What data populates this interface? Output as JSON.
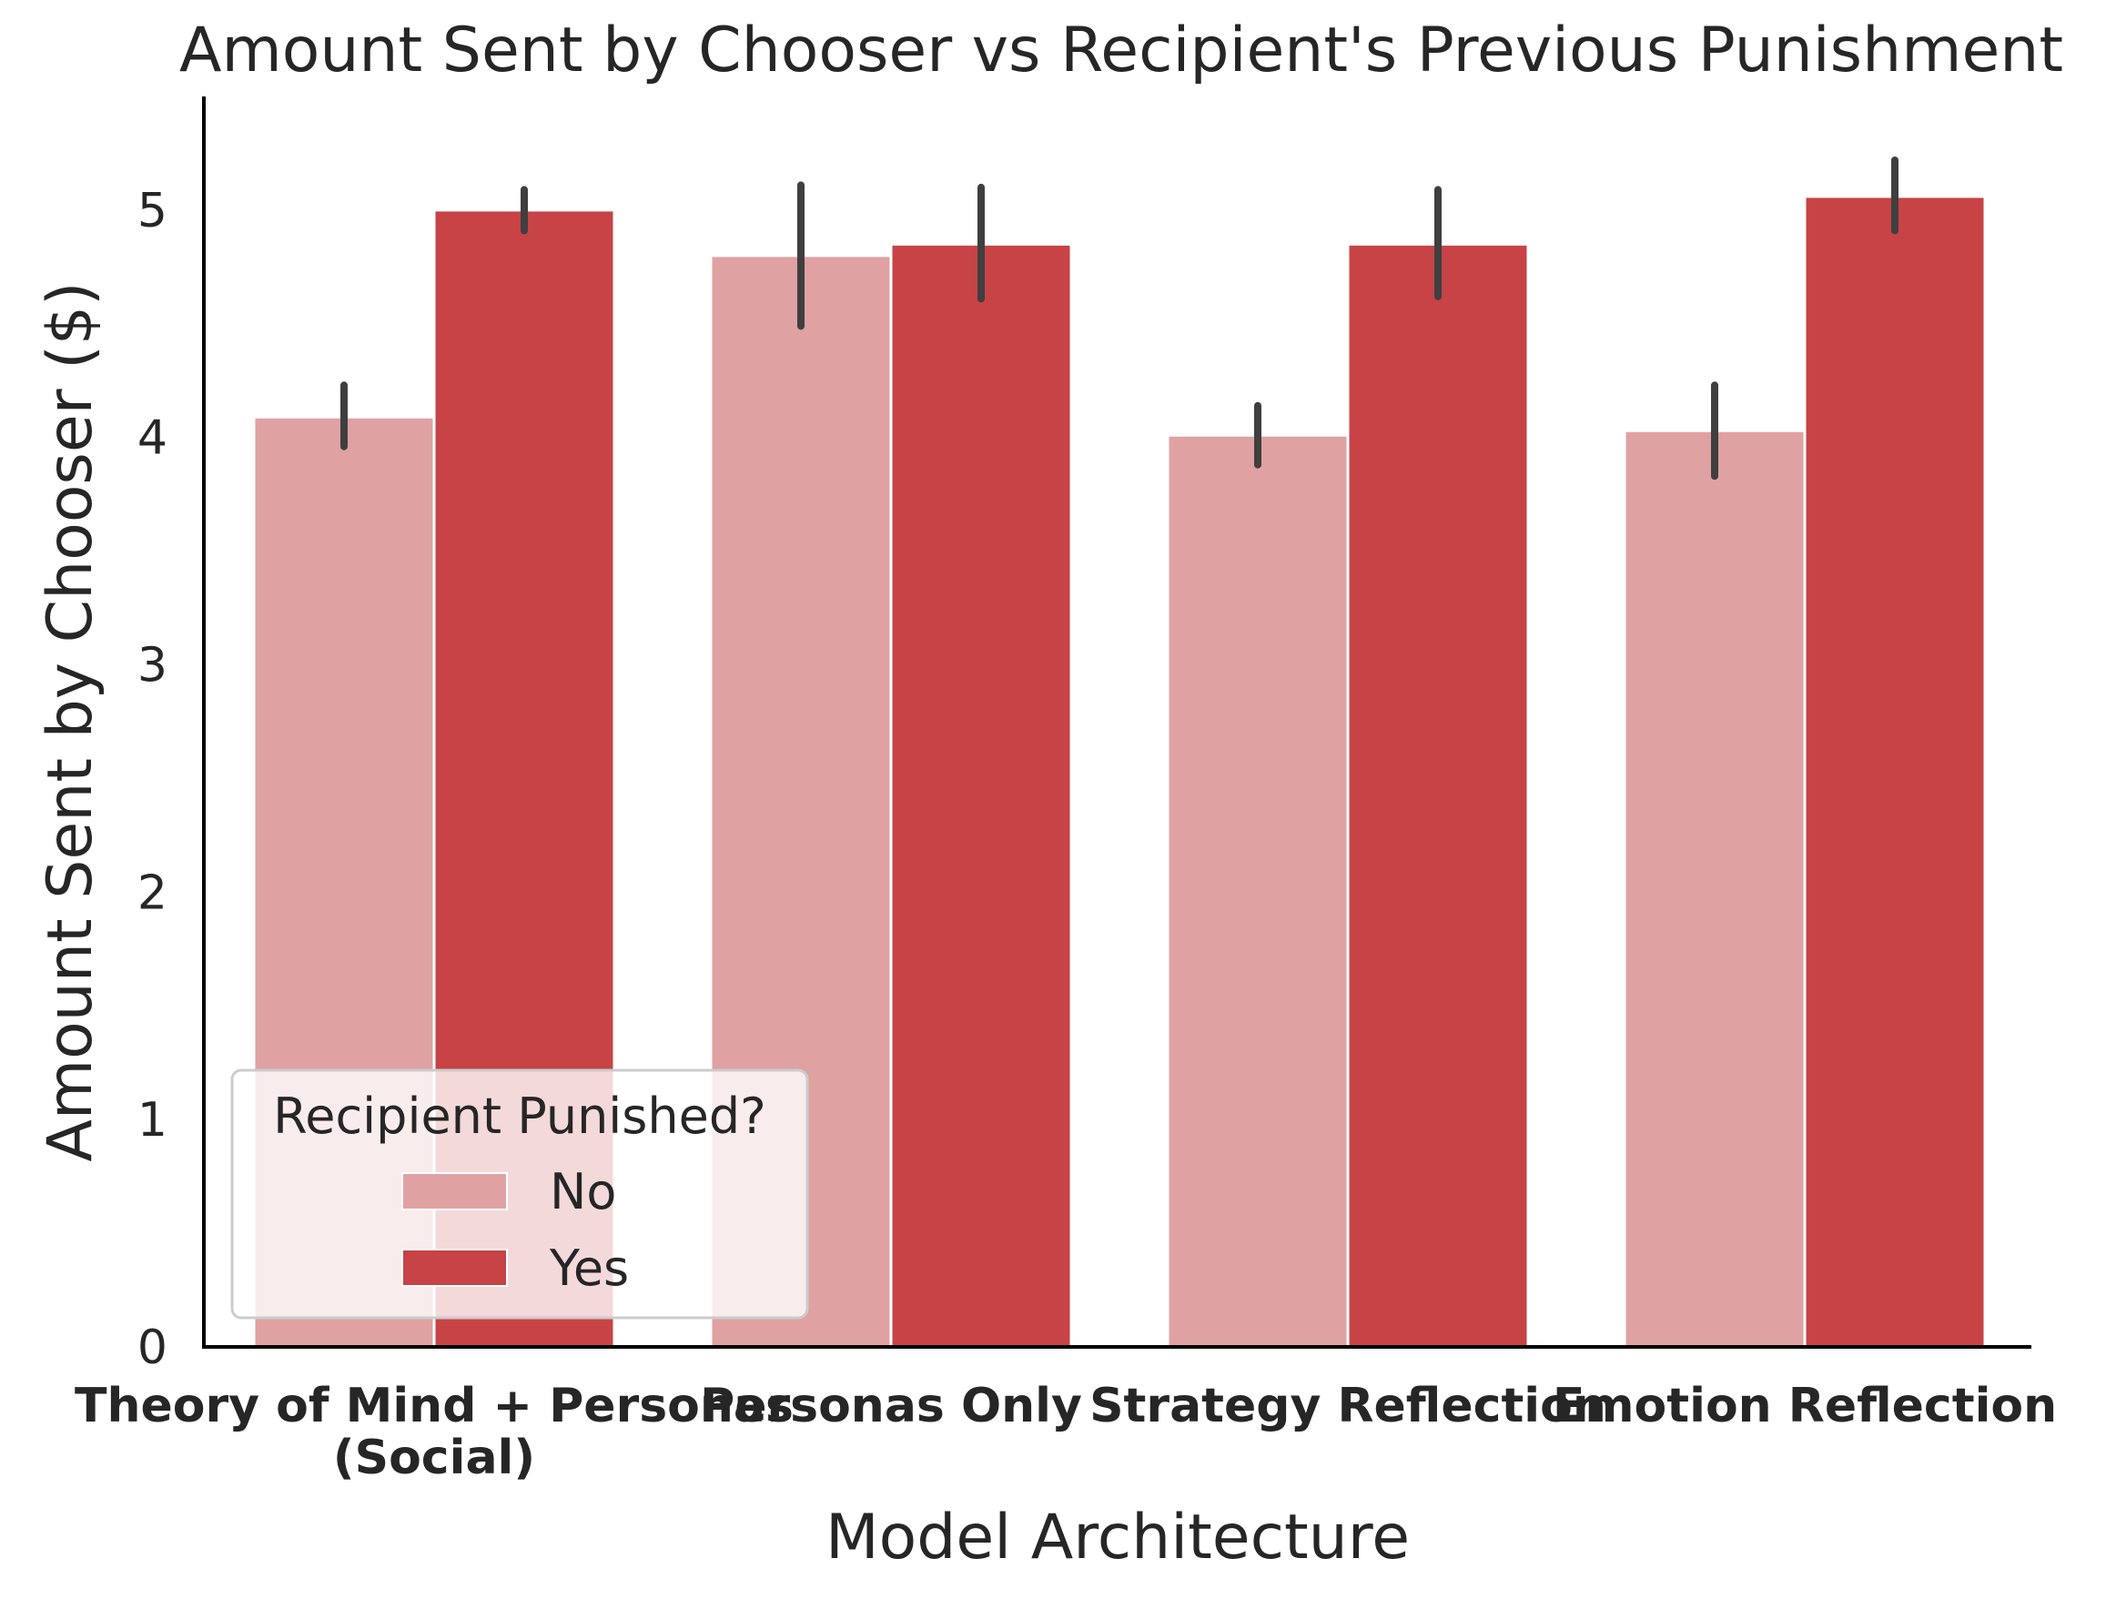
{
  "chart_data": {
    "type": "bar",
    "title": "Amount Sent by Chooser vs Recipient's Previous Punishment",
    "xlabel": "Model Architecture",
    "ylabel": "Amount Sent by Chooser ($)",
    "categories": [
      [
        "Theory of Mind + Personas",
        "(Social)"
      ],
      [
        "Personas Only"
      ],
      [
        "Strategy Reflection"
      ],
      [
        "Emotion Reflection"
      ]
    ],
    "ylim": [
      0,
      5.5
    ],
    "yticks": [
      "0",
      "1",
      "2",
      "3",
      "4",
      "5"
    ],
    "series": [
      {
        "name": "No",
        "color": "#e0a1a3",
        "values": [
          4.09,
          4.8,
          4.01,
          4.03
        ],
        "err_low": [
          3.96,
          4.49,
          3.88,
          3.83
        ],
        "err_high": [
          4.23,
          5.11,
          4.14,
          4.23
        ]
      },
      {
        "name": "Yes",
        "color": "#c74346",
        "values": [
          5.0,
          4.85,
          4.85,
          5.06
        ],
        "err_low": [
          4.91,
          4.61,
          4.62,
          4.91
        ],
        "err_high": [
          5.09,
          5.1,
          5.09,
          5.22
        ]
      }
    ],
    "legend": {
      "title": "Recipient Punished?",
      "position": "lower-left"
    },
    "grid": false
  }
}
